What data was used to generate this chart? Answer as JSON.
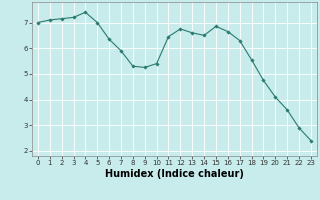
{
  "x": [
    0,
    1,
    2,
    3,
    4,
    5,
    6,
    7,
    8,
    9,
    10,
    11,
    12,
    13,
    14,
    15,
    16,
    17,
    18,
    19,
    20,
    21,
    22,
    23
  ],
  "y": [
    7.0,
    7.1,
    7.15,
    7.2,
    7.4,
    7.0,
    6.35,
    5.9,
    5.3,
    5.25,
    5.4,
    6.45,
    6.75,
    6.6,
    6.5,
    6.85,
    6.65,
    6.3,
    5.55,
    4.75,
    4.1,
    3.6,
    2.9,
    2.4
  ],
  "line_color": "#2a7a6f",
  "marker": "D",
  "marker_size": 1.8,
  "bg_color": "#c8ecec",
  "grid_color": "#ffffff",
  "xlabel": "Humidex (Indice chaleur)",
  "xlim": [
    -0.5,
    23.5
  ],
  "ylim": [
    1.8,
    7.8
  ],
  "yticks": [
    2,
    3,
    4,
    5,
    6,
    7
  ],
  "xticks": [
    0,
    1,
    2,
    3,
    4,
    5,
    6,
    7,
    8,
    9,
    10,
    11,
    12,
    13,
    14,
    15,
    16,
    17,
    18,
    19,
    20,
    21,
    22,
    23
  ],
  "tick_fontsize": 5.0,
  "xlabel_fontsize": 7.0,
  "line_width": 0.8
}
